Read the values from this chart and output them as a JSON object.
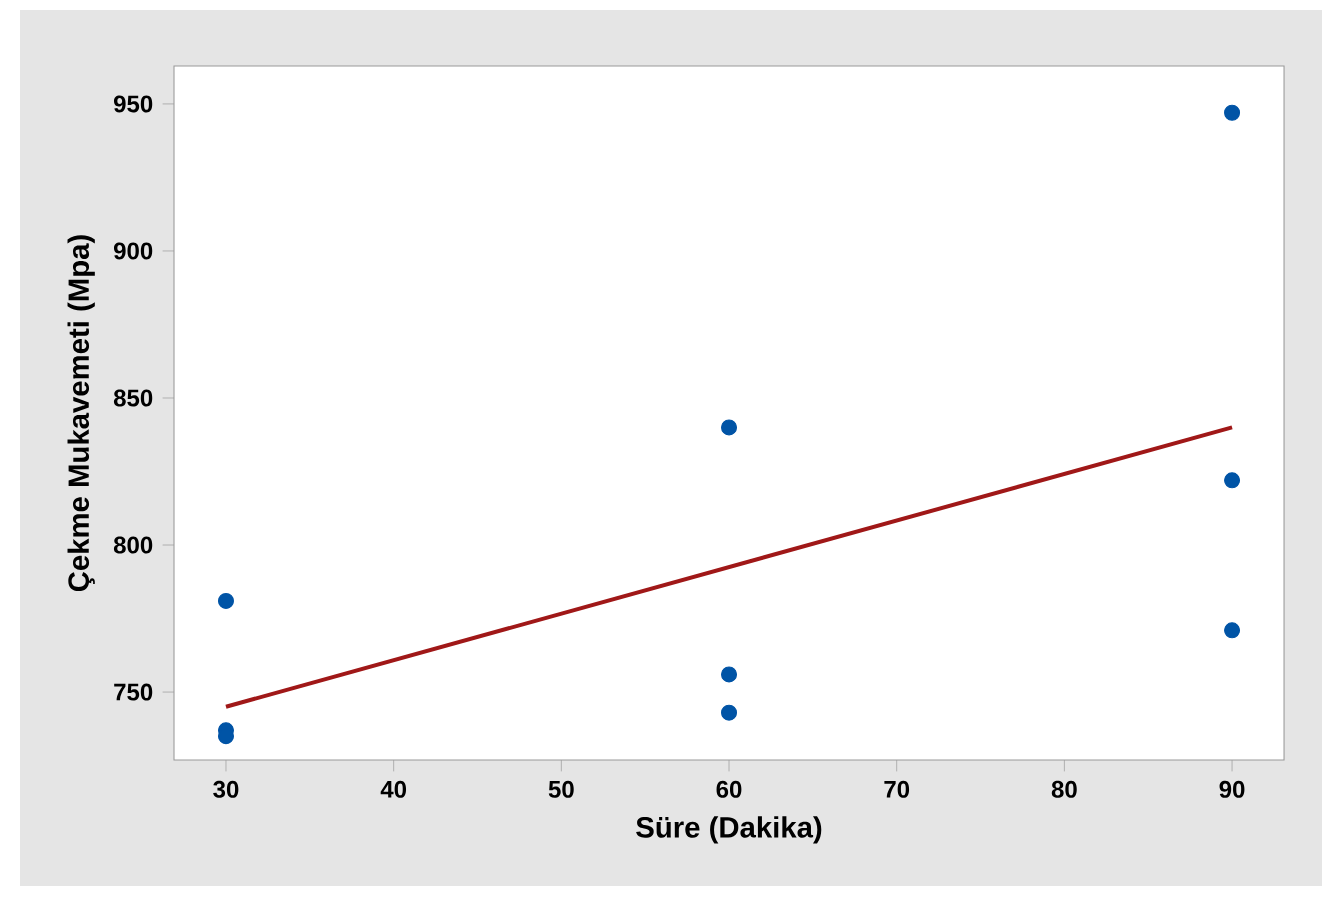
{
  "chart_data": {
    "type": "scatter",
    "xlabel": "Süre (Dakika)",
    "ylabel": "Çekme Mukavemeti (Mpa)",
    "xlim": [
      26.9,
      93.1
    ],
    "ylim": [
      726.9,
      962.9
    ],
    "xticks": [
      30,
      40,
      50,
      60,
      70,
      80,
      90
    ],
    "yticks": [
      750,
      800,
      850,
      900,
      950
    ],
    "series": [
      {
        "color": "#0054a6",
        "marker": "circle",
        "x": [
          30,
          30,
          30,
          60,
          60,
          60,
          90,
          90,
          90
        ],
        "values": [
          781,
          737,
          735,
          840,
          756,
          743,
          947,
          822,
          771
        ]
      },
      {
        "type": "line",
        "color": "#a01818",
        "marker": "none",
        "line_style": "solid",
        "x": [
          30,
          90
        ],
        "values": [
          745,
          840
        ]
      }
    ]
  }
}
